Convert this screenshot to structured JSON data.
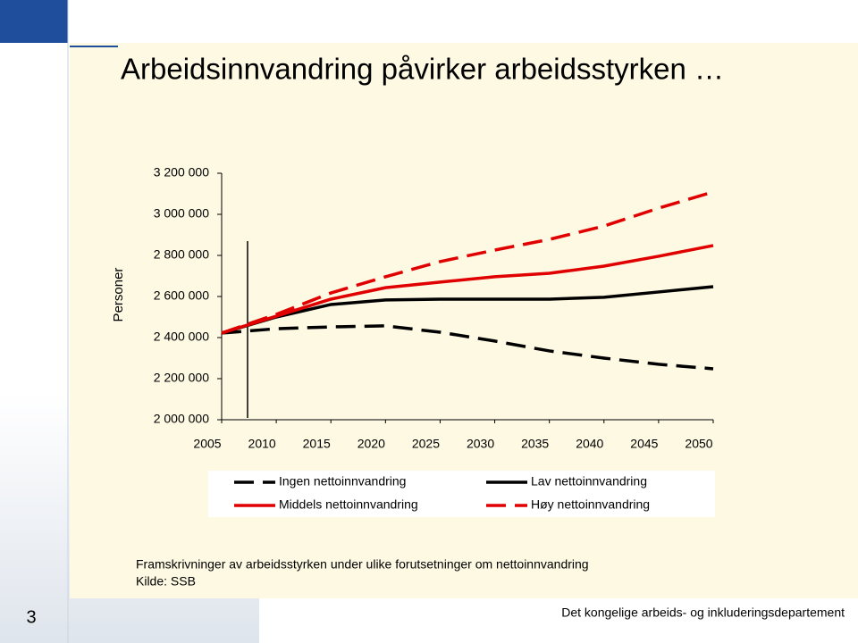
{
  "chart_data": {
    "type": "line",
    "title": "Arbeidsinnvandring påvirker arbeidsstyrken …",
    "y_label": "Personer",
    "x": [
      2005,
      2010,
      2015,
      2020,
      2025,
      2030,
      2035,
      2040,
      2045,
      2050
    ],
    "xlim": [
      2005,
      2050
    ],
    "xticks": [
      2005,
      2010,
      2015,
      2020,
      2025,
      2030,
      2035,
      2040,
      2045,
      2050
    ],
    "ylim": [
      2000000,
      3200000
    ],
    "yticks": [
      {
        "value": 2000000,
        "label": "2 000 000"
      },
      {
        "value": 2200000,
        "label": "2 200 000"
      },
      {
        "value": 2400000,
        "label": "2 400 000"
      },
      {
        "value": 2600000,
        "label": "2 600 000"
      },
      {
        "value": 2800000,
        "label": "2 800 000"
      },
      {
        "value": 3000000,
        "label": "3 000 000"
      },
      {
        "value": 3200000,
        "label": "3 200 000"
      }
    ],
    "series": [
      {
        "name": "Ingen nettoinnvandring",
        "color": "#000000",
        "style": "dashed",
        "values": [
          2422000,
          2443000,
          2452000,
          2457000,
          2426000,
          2383000,
          2335000,
          2300000,
          2270000,
          2248000
        ]
      },
      {
        "name": "Lav nettoinnvandring",
        "color": "#000000",
        "style": "solid",
        "values": [
          2422000,
          2500000,
          2561000,
          2583000,
          2587000,
          2587000,
          2587000,
          2596000,
          2622000,
          2648000
        ]
      },
      {
        "name": "Middels nettoinnvandring",
        "color": "#e00000",
        "style": "solid",
        "values": [
          2422000,
          2504000,
          2587000,
          2643000,
          2670000,
          2696000,
          2713000,
          2748000,
          2796000,
          2848000
        ]
      },
      {
        "name": "Høy nettoinnvandring",
        "color": "#e00000",
        "style": "dashed",
        "values": [
          2422000,
          2513000,
          2617000,
          2696000,
          2770000,
          2826000,
          2878000,
          2943000,
          3030000,
          3109000
        ]
      }
    ],
    "caption": "Framskrivninger av arbeidsstyrken under ulike forutsetninger om nettoinnvandring",
    "source": "Kilde: SSB"
  },
  "footer": "Det kongelige arbeids- og inkluderingsdepartement",
  "slide_number": "3"
}
